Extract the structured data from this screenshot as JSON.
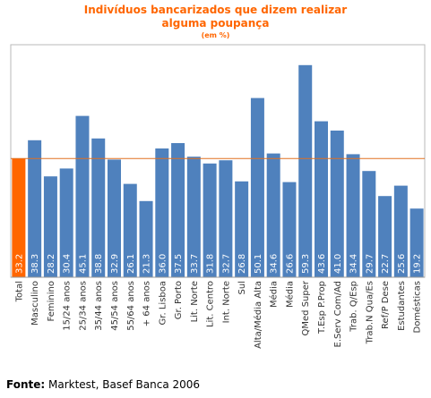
{
  "chart_data": {
    "type": "bar",
    "title": "Indivíduos bancarizados que dizem realizar",
    "title_line2": "alguma poupança",
    "subtitle": "(em %)",
    "categories": [
      "Total",
      "Masculino",
      "Feminino",
      "15/24 anos",
      "25/34 anos",
      "35/44 anos",
      "45/54 anos",
      "55/64 anos",
      "+ 64 anos",
      "Gr. Lisboa",
      "Gr. Porto",
      "Lit. Norte",
      "Lit. Centro",
      "Int. Norte",
      "Sul",
      "Alta/Média Alta",
      "Média",
      "Média",
      "QMed Super",
      "T.Esp P.Prop",
      "E.Serv Com/Ad",
      "Trab. Q/Esp",
      "Trab.N Qua/Es",
      "Ref/P Dese",
      "Estudantes",
      "Domésticas"
    ],
    "values": [
      33.2,
      38.3,
      28.2,
      30.4,
      45.1,
      38.8,
      32.9,
      26.1,
      21.3,
      36.0,
      37.5,
      33.7,
      31.8,
      32.7,
      26.8,
      50.1,
      34.6,
      26.6,
      59.3,
      43.6,
      41.0,
      34.4,
      29.7,
      22.7,
      25.6,
      19.2
    ],
    "value_labels": [
      "33.2",
      "38.3",
      "28.2",
      "30.4",
      "45.1",
      "38.8",
      "32.9",
      "26.1",
      "21.3",
      "36.0",
      "37.5",
      "33.7",
      "31.8",
      "32.7",
      "26.8",
      "50.1",
      "34.6",
      "26.6",
      "59.3",
      "43.6",
      "41.0",
      "34.4",
      "29.7",
      "22.7",
      "25.6",
      "19.2"
    ],
    "highlight_index": 0,
    "reference_value": 33.2,
    "ylim": [
      0,
      65
    ],
    "grid": false,
    "colors": {
      "bar": "#4f81bd",
      "highlight": "#ff6600",
      "reference_line": "#e07020",
      "title": "#ff6600",
      "value_label": "#ffffff",
      "axis_label": "#333333"
    }
  },
  "source": {
    "label": "Fonte:",
    "text": "Marktest, Basef Banca 2006"
  }
}
